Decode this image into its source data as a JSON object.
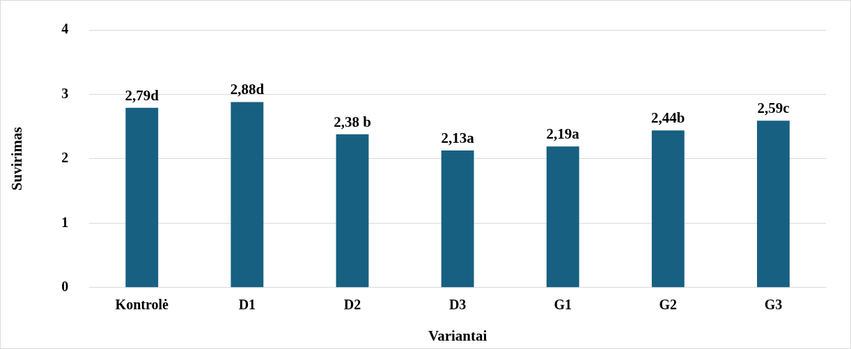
{
  "chart_data": {
    "type": "bar",
    "xlabel": "Variantai",
    "ylabel": "Suvirimas",
    "categories": [
      "Kontrolė",
      "D1",
      "D2",
      "D3",
      "G1",
      "G2",
      "G3"
    ],
    "values": [
      2.79,
      2.88,
      2.38,
      2.13,
      2.19,
      2.44,
      2.59
    ],
    "value_labels": [
      "2,79d",
      "2,88d",
      "2,38 b",
      "2,13a",
      "2,19a",
      "2,44b",
      "2,59c"
    ],
    "color": "#176082",
    "ylim": [
      0,
      4
    ],
    "yticks": [
      0,
      1,
      2,
      3,
      4
    ],
    "grid": "y",
    "legend": false
  }
}
